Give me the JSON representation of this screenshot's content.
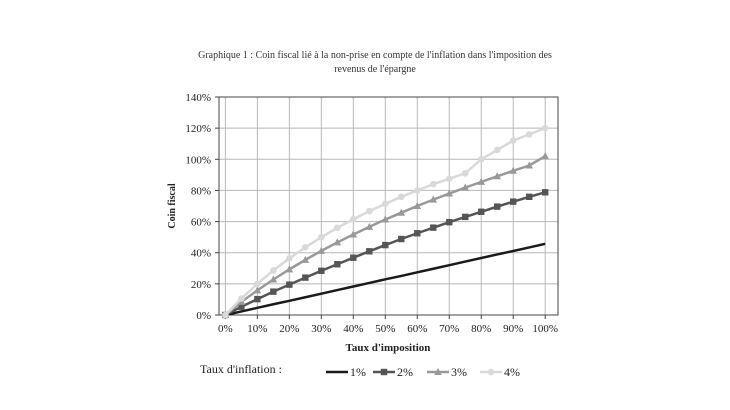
{
  "chart_data": {
    "type": "line",
    "title_line1": "Graphique 1 : Coin fiscal lié à la non-prise en compte de l'inflation dans l'imposition des",
    "title_line2": "revenus de l'épargne",
    "xlabel": "Taux d'imposition",
    "ylabel": "Coin fiscal",
    "x": [
      0,
      5,
      10,
      15,
      20,
      25,
      30,
      35,
      40,
      45,
      50,
      55,
      60,
      65,
      70,
      75,
      80,
      85,
      90,
      95,
      100
    ],
    "xticks": [
      "0%",
      "10%",
      "20%",
      "30%",
      "40%",
      "50%",
      "60%",
      "70%",
      "80%",
      "90%",
      "100%"
    ],
    "xtick_values": [
      0,
      10,
      20,
      30,
      40,
      50,
      60,
      70,
      80,
      90,
      100
    ],
    "yticks": [
      "0%",
      "20%",
      "40%",
      "60%",
      "80%",
      "100%",
      "120%",
      "140%"
    ],
    "ytick_values": [
      0,
      20,
      40,
      60,
      80,
      100,
      120,
      140
    ],
    "xlim": [
      -2,
      104
    ],
    "ylim": [
      0,
      140
    ],
    "grid": "vertical",
    "legend_title": "Taux d'inflation :",
    "legend_position": "bottom",
    "series": [
      {
        "name": "1%",
        "color": "#1a1a1a",
        "marker": "none",
        "values": [
          0,
          2.3,
          4.6,
          6.9,
          9.1,
          11.4,
          13.7,
          16.0,
          18.3,
          20.6,
          22.9,
          25.1,
          27.4,
          29.7,
          32.0,
          34.3,
          36.6,
          38.9,
          41.1,
          43.4,
          45.7
        ]
      },
      {
        "name": "2%",
        "color": "#555555",
        "marker": "square",
        "values": [
          0,
          5.3,
          10.2,
          15.0,
          19.5,
          24.0,
          28.4,
          32.6,
          36.8,
          40.9,
          44.9,
          48.8,
          52.5,
          56.1,
          59.6,
          63.0,
          66.3,
          69.6,
          72.8,
          75.9,
          78.8
        ]
      },
      {
        "name": "3%",
        "color": "#999999",
        "marker": "triangle",
        "values": [
          0,
          8.4,
          15.8,
          22.8,
          29.3,
          35.4,
          41.2,
          46.6,
          51.7,
          56.6,
          61.3,
          65.7,
          70.0,
          74.1,
          78.0,
          81.8,
          85.5,
          89.1,
          92.6,
          96.0,
          102.0
        ]
      },
      {
        "name": "4%",
        "color": "#d9d9d9",
        "marker": "circle",
        "values": [
          0,
          10.6,
          20.0,
          28.6,
          36.4,
          43.5,
          50.0,
          56.0,
          61.5,
          66.7,
          71.4,
          75.9,
          80.0,
          84.0,
          87.5,
          91.0,
          100.0,
          106.0,
          112.0,
          116.0,
          120.0
        ]
      }
    ]
  }
}
